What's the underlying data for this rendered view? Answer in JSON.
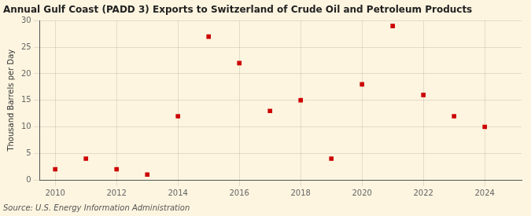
{
  "chart_data": {
    "type": "scatter",
    "title": "Annual Gulf Coast (PADD 3) Exports to Switzerland of Crude Oil and Petroleum Products",
    "ylabel": "Thousand Barrels per Day",
    "annotation": "Source: U.S. Energy Information Administration",
    "x": [
      2010,
      2011,
      2012,
      2013,
      2014,
      2015,
      2016,
      2017,
      2018,
      2019,
      2020,
      2021,
      2022,
      2023,
      2024
    ],
    "values": [
      2,
      4,
      2,
      1,
      12,
      27,
      22,
      13,
      15,
      4,
      18,
      29,
      16,
      12,
      10
    ],
    "color": "#cc0000",
    "marker": "square",
    "xlim": [
      2009.5,
      2025.2
    ],
    "xticks": [
      2010,
      2012,
      2014,
      2016,
      2018,
      2020,
      2022,
      2024
    ],
    "ylim": [
      0,
      30
    ],
    "yticks": [
      0,
      5,
      10,
      15,
      20,
      25,
      30
    ],
    "grid": true
  }
}
